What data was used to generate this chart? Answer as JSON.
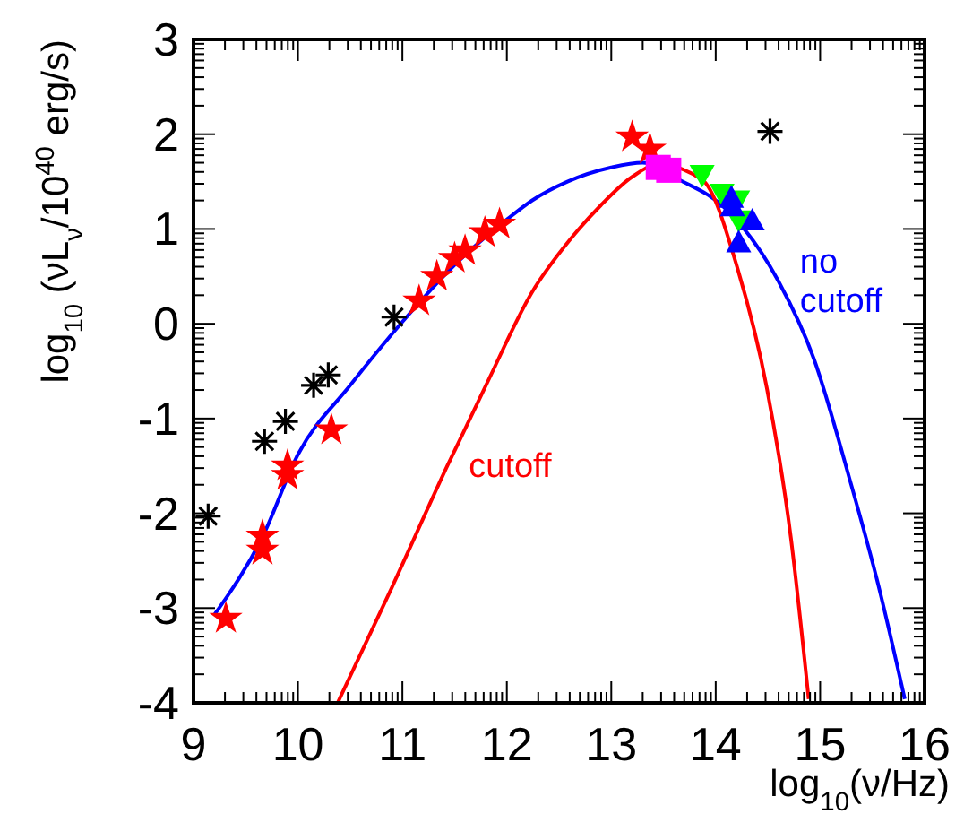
{
  "chart_data": {
    "type": "scatter",
    "xlabel": "log$_{10}$(ν/Hz)",
    "ylabel": "log$_{10}$ (νL$_{ν}$/10$^{40}$ erg/s)",
    "xlim": [
      9,
      16
    ],
    "xticks": [
      9,
      10,
      11,
      12,
      13,
      14,
      15,
      16
    ],
    "ylim": [
      -4,
      3
    ],
    "yticks": [
      -4,
      -3,
      -2,
      -1,
      0,
      1,
      2,
      3
    ],
    "grid": false,
    "series": [
      {
        "type": "line",
        "color": "#0000ff",
        "marker": "none",
        "line_style": "solid",
        "x": [
          9.2,
          9.66,
          10,
          10.5,
          11,
          11.5,
          12,
          12.24,
          12.58,
          13,
          13.3,
          13.65,
          14.1,
          14.6,
          14.94,
          15.28,
          15.56,
          15.81
        ],
        "values": [
          -3.07,
          -2.25,
          -1.38,
          -0.65,
          0.02,
          0.62,
          1.1,
          1.3,
          1.5,
          1.65,
          1.7,
          1.52,
          1.21,
          0.45,
          -0.37,
          -1.63,
          -2.77,
          -3.96
        ]
      },
      {
        "type": "line",
        "color": "#ff0000",
        "marker": "none",
        "line_style": "solid",
        "x": [
          10.38,
          10.9,
          11.43,
          11.8,
          12.24,
          12.6,
          12.9,
          13.2,
          13.45,
          13.87,
          14.21,
          14.49,
          14.72,
          14.89
        ],
        "values": [
          -4,
          -2.78,
          -1.5,
          -0.65,
          0.33,
          0.88,
          1.25,
          1.55,
          1.68,
          1.52,
          0.58,
          -0.68,
          -2.26,
          -3.96
        ]
      },
      {
        "color": "#ff0000",
        "marker": "star",
        "x": [
          9.31,
          9.66,
          9.66,
          9.9,
          9.9,
          10.32,
          11.16,
          11.33,
          11.5,
          11.6,
          11.79,
          11.93,
          13.2,
          13.37
        ],
        "values": [
          -3.11,
          -2.24,
          -2.39,
          -1.5,
          -1.6,
          -1.12,
          0.24,
          0.5,
          0.69,
          0.77,
          0.96,
          1.05,
          1.97,
          1.84
        ]
      },
      {
        "color": "#000000",
        "marker": "cross",
        "x": [
          9.14,
          9.68,
          9.88,
          10.15,
          10.29,
          10.92,
          14.52
        ],
        "values": [
          -2.03,
          -1.24,
          -1.03,
          -0.65,
          -0.54,
          0.07,
          2.03
        ]
      },
      {
        "color": "#ff00ff",
        "marker": "square",
        "x": [
          13.45,
          13.55
        ],
        "values": [
          1.65,
          1.62
        ]
      },
      {
        "color": "#00ff00",
        "marker": "triangle-down",
        "x": [
          13.87,
          14.06,
          14.21,
          14.22
        ],
        "values": [
          1.57,
          1.37,
          1.3,
          1.09
        ]
      },
      {
        "color": "#0000ff",
        "marker": "triangle",
        "x": [
          14.15,
          14.16,
          14.35,
          14.22
        ],
        "values": [
          1.33,
          1.24,
          1.09,
          0.86
        ]
      }
    ],
    "annotations": [
      {
        "text": "cutoff",
        "x": 11.43,
        "y": -1.5
      },
      {
        "text": "no\ncutoff",
        "x": 14.6,
        "y": 0.45
      }
    ]
  }
}
